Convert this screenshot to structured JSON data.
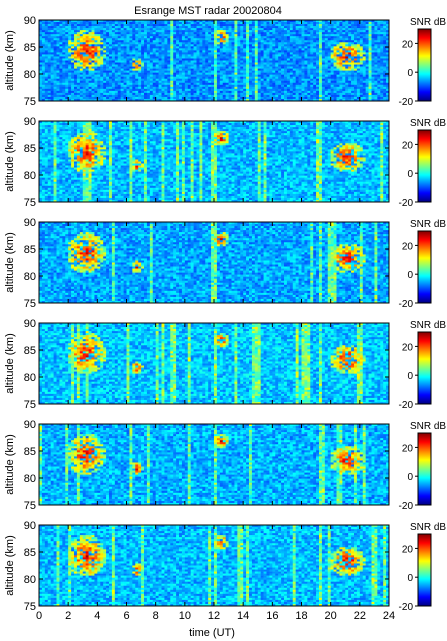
{
  "chart_data": {
    "type": "heatmap",
    "title": "Esrange MST radar 20020804",
    "xlabel": "time (UT)",
    "ylabel": "altitude (km)",
    "xlim": [
      0,
      24
    ],
    "ylim": [
      75,
      90
    ],
    "x_ticks": [
      0,
      2,
      4,
      6,
      8,
      10,
      12,
      14,
      16,
      18,
      20,
      22,
      24
    ],
    "y_ticks": [
      75,
      80,
      85,
      90
    ],
    "colorbar": {
      "label": "SNR dB",
      "range": [
        -20,
        30
      ],
      "ticks": [
        -20,
        0,
        20
      ]
    },
    "panel_count": 6,
    "echo_regions": [
      {
        "t": [
          2.0,
          4.5
        ],
        "alt": [
          80.5,
          88.0
        ]
      },
      {
        "t": [
          6.4,
          7.1
        ],
        "alt": [
          80.5,
          83.0
        ]
      },
      {
        "t": [
          12.0,
          13.0
        ],
        "alt": [
          85.5,
          88.0
        ]
      },
      {
        "t": [
          20.0,
          22.3
        ],
        "alt": [
          80.5,
          86.0
        ]
      }
    ]
  }
}
